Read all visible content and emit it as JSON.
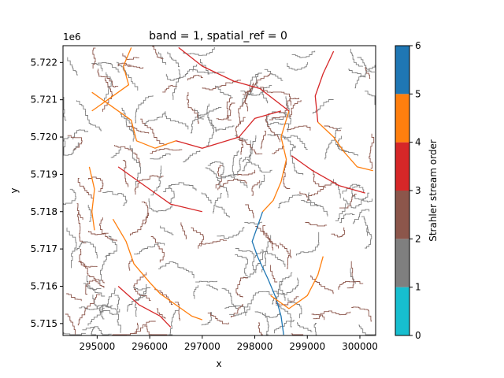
{
  "chart_data": {
    "type": "heatmap",
    "title": "band = 1, spatial_ref = 0",
    "xlabel": "x",
    "ylabel": "y",
    "y_offset_label": "1e6",
    "xlim": [
      294350,
      300300
    ],
    "ylim": [
      5.71468,
      5.72245
    ],
    "x_ticks": [
      295000,
      296000,
      297000,
      298000,
      299000,
      300000
    ],
    "x_tick_labels": [
      "295000",
      "296000",
      "297000",
      "298000",
      "299000",
      "300000"
    ],
    "y_ticks": [
      5.715,
      5.716,
      5.717,
      5.718,
      5.719,
      5.72,
      5.721,
      5.722
    ],
    "y_tick_labels": [
      "5.715",
      "5.716",
      "5.717",
      "5.718",
      "5.719",
      "5.720",
      "5.721",
      "5.722"
    ],
    "colorbar": {
      "label": "Strahler stream order",
      "range": [
        0,
        6
      ],
      "ticks": [
        0,
        1,
        2,
        3,
        4,
        5,
        6
      ],
      "tick_labels": [
        "0",
        "1",
        "2",
        "3",
        "4",
        "5",
        "6"
      ],
      "bins": [
        {
          "from": 0,
          "to": 1,
          "color": "#17becf"
        },
        {
          "from": 1,
          "to": 2,
          "color": "#7f7f7f"
        },
        {
          "from": 2,
          "to": 3,
          "color": "#8c564b"
        },
        {
          "from": 3,
          "to": 4,
          "color": "#d62728"
        },
        {
          "from": 4,
          "to": 5,
          "color": "#ff7f0e"
        },
        {
          "from": 5,
          "to": 6,
          "color": "#1f77b4"
        }
      ]
    },
    "main_streams": [
      {
        "order": 5,
        "points": [
          [
            298150,
            5.718
          ],
          [
            298050,
            5.7176
          ],
          [
            297950,
            5.7172
          ],
          [
            298050,
            5.7168
          ],
          [
            298250,
            5.7162
          ],
          [
            298400,
            5.7157
          ],
          [
            298500,
            5.7152
          ],
          [
            298550,
            5.7147
          ]
        ]
      },
      {
        "order": 4,
        "points": [
          [
            295650,
            5.7224
          ],
          [
            295500,
            5.7219
          ],
          [
            295600,
            5.7214
          ],
          [
            295200,
            5.721
          ],
          [
            294900,
            5.7207
          ]
        ]
      },
      {
        "order": 4,
        "points": [
          [
            294900,
            5.7212
          ],
          [
            295250,
            5.72085
          ],
          [
            295650,
            5.72045
          ],
          [
            295750,
            5.7199
          ],
          [
            296100,
            5.7197
          ],
          [
            296500,
            5.7199
          ]
        ]
      },
      {
        "order": 4,
        "points": [
          [
            294850,
            5.7192
          ],
          [
            294950,
            5.7186
          ],
          [
            294900,
            5.718
          ],
          [
            294950,
            5.7175
          ]
        ]
      },
      {
        "order": 4,
        "points": [
          [
            295300,
            5.7178
          ],
          [
            295550,
            5.7172
          ],
          [
            295700,
            5.7166
          ],
          [
            296000,
            5.7161
          ],
          [
            296200,
            5.7158
          ],
          [
            296800,
            5.7152
          ],
          [
            297000,
            5.7151
          ]
        ]
      },
      {
        "order": 4,
        "points": [
          [
            298650,
            5.7207
          ],
          [
            298500,
            5.72
          ],
          [
            298600,
            5.7194
          ],
          [
            298500,
            5.7188
          ],
          [
            298350,
            5.7183
          ],
          [
            298150,
            5.718
          ]
        ]
      },
      {
        "order": 4,
        "points": [
          [
            298300,
            5.71575
          ],
          [
            298650,
            5.7154
          ],
          [
            299000,
            5.71575
          ],
          [
            299200,
            5.7163
          ],
          [
            299300,
            5.7168
          ]
        ]
      },
      {
        "order": 4,
        "points": [
          [
            299200,
            5.7204
          ],
          [
            299500,
            5.72
          ],
          [
            299700,
            5.7196
          ],
          [
            299950,
            5.7192
          ],
          [
            300250,
            5.7191
          ]
        ]
      },
      {
        "order": 3,
        "points": [
          [
            296500,
            5.7199
          ],
          [
            297000,
            5.7197
          ],
          [
            297700,
            5.72
          ],
          [
            298000,
            5.7205
          ],
          [
            298500,
            5.7207
          ]
        ]
      },
      {
        "order": 3,
        "points": [
          [
            296550,
            5.7224
          ],
          [
            297000,
            5.7219
          ],
          [
            297600,
            5.7215
          ],
          [
            298100,
            5.7213
          ],
          [
            298650,
            5.7207
          ]
        ]
      },
      {
        "order": 3,
        "points": [
          [
            295400,
            5.7192
          ],
          [
            295900,
            5.7187
          ],
          [
            296400,
            5.7182
          ],
          [
            297000,
            5.718
          ]
        ]
      },
      {
        "order": 3,
        "points": [
          [
            298700,
            5.7195
          ],
          [
            299100,
            5.7191
          ],
          [
            299600,
            5.7187
          ],
          [
            300100,
            5.7185
          ]
        ]
      },
      {
        "order": 3,
        "points": [
          [
            295400,
            5.716
          ],
          [
            295800,
            5.7155
          ],
          [
            296200,
            5.7152
          ],
          [
            296400,
            5.7149
          ]
        ]
      },
      {
        "order": 3,
        "points": [
          [
            299500,
            5.7223
          ],
          [
            299300,
            5.7217
          ],
          [
            299150,
            5.7211
          ],
          [
            299200,
            5.7204
          ]
        ]
      }
    ]
  }
}
